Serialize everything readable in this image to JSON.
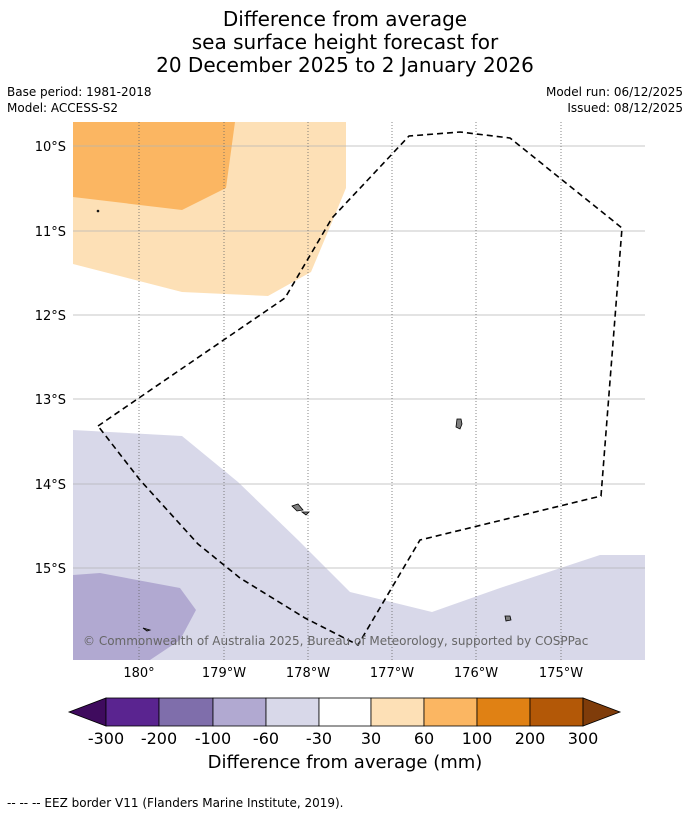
{
  "title": {
    "line1": "Difference from average",
    "line2": "sea surface height forecast for",
    "line3": "20 December 2025 to 2 January 2026"
  },
  "meta": {
    "base_period": "Base period: 1981-2018",
    "model": "Model: ACCESS-S2",
    "model_run": "Model run: 06/12/2025",
    "issued": "Issued: 08/12/2025"
  },
  "map": {
    "latitude_labels": [
      "10°S",
      "11°S",
      "12°S",
      "13°S",
      "14°S",
      "15°S"
    ],
    "longitude_labels": [
      "180°",
      "179°W",
      "178°W",
      "177°W",
      "176°W",
      "175°W"
    ],
    "copyright": "© Commonwealth of Australia 2025, Bureau of Meteorology, supported by COSPPac",
    "colors": {
      "anom_30_60": "#fde0b6",
      "anom_60_100": "#fbb662",
      "anom_neg30_neg60": "#d8d8e9",
      "anom_neg60_neg100": "#b1a9d1",
      "eez_line": "#000000",
      "land": "#7f7f7f"
    }
  },
  "colorbar": {
    "tick_labels": [
      "-300",
      "-200",
      "-100",
      "-60",
      "-30",
      "30",
      "60",
      "100",
      "200",
      "300"
    ],
    "colors": [
      "#3f0b5e",
      "#5a2490",
      "#7f6eab",
      "#b1a9d1",
      "#d8d8e9",
      "#ffffff",
      "#fde0b6",
      "#fbb662",
      "#e08114",
      "#b35807",
      "#7f3c0a"
    ],
    "label": "Difference from average (mm)"
  },
  "footer": {
    "legend_text": "--  --  -- EEZ border V11 (Flanders Marine Institute, 2019)."
  }
}
